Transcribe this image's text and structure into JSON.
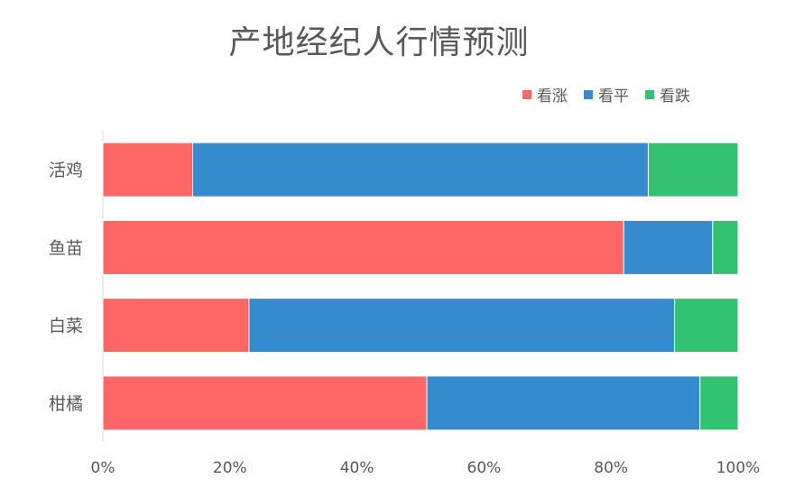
{
  "chart_data": {
    "type": "bar",
    "orientation": "horizontal",
    "stacked": "percent",
    "title": "产地经纪人行情预测",
    "categories": [
      "活鸡",
      "鱼苗",
      "白菜",
      "柑橘"
    ],
    "series": [
      {
        "name": "看涨",
        "color": "#ff6666",
        "values": [
          14,
          82,
          23,
          51
        ]
      },
      {
        "name": "看平",
        "color": "#368bcd",
        "values": [
          71,
          14,
          67,
          43
        ]
      },
      {
        "name": "看跌",
        "color": "#33c172",
        "values": [
          14,
          4,
          10,
          6
        ]
      }
    ],
    "x_ticks": [
      "0%",
      "20%",
      "40%",
      "60%",
      "80%",
      "100%"
    ],
    "xlim": [
      0,
      100
    ],
    "legend_position": "top-right",
    "grid": false
  }
}
